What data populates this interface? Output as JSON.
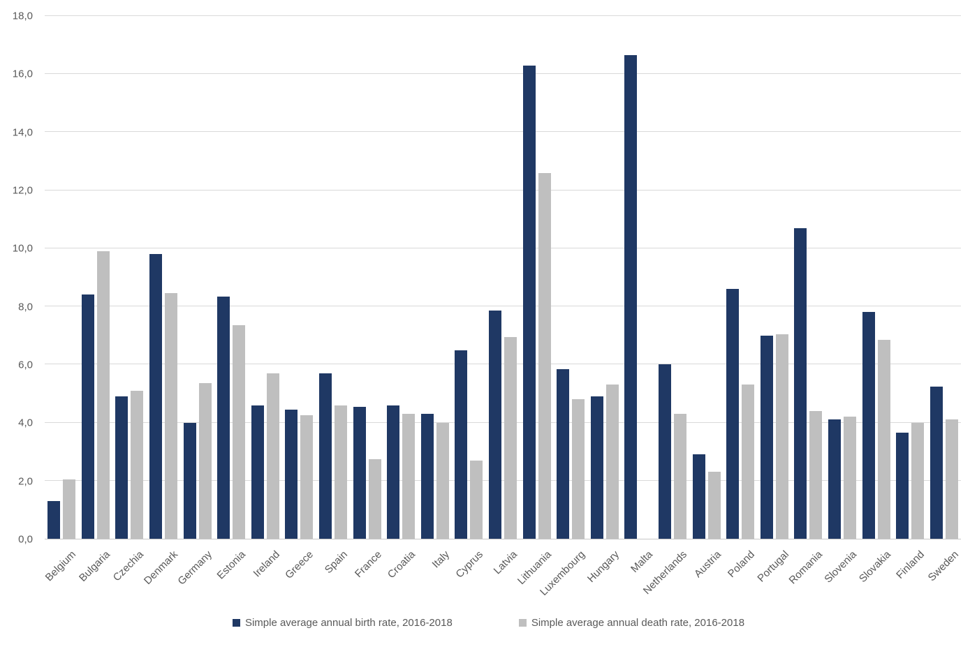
{
  "chart_data": {
    "type": "bar",
    "title": "",
    "categories": [
      "Belgium",
      "Bulgaria",
      "Czechia",
      "Denmark",
      "Germany",
      "Estonia",
      "Ireland",
      "Greece",
      "Spain",
      "France",
      "Croatia",
      "Italy",
      "Cyprus",
      "Latvia",
      "Lithuania",
      "Luxembourg",
      "Hungary",
      "Malta",
      "Netherlands",
      "Austria",
      "Poland",
      "Portugal",
      "Romania",
      "Slovenia",
      "Slovakia",
      "Finland",
      "Sweden"
    ],
    "series": [
      {
        "name": "Simple average annual birth rate, 2016-2018",
        "color": "#1f3864",
        "values": [
          1.3,
          8.4,
          4.9,
          9.8,
          4.0,
          8.35,
          4.6,
          4.45,
          5.7,
          4.55,
          4.6,
          4.3,
          6.5,
          7.85,
          16.3,
          5.85,
          4.9,
          16.65,
          6.0,
          2.9,
          8.6,
          7.0,
          10.7,
          4.1,
          7.8,
          3.65,
          5.25
        ]
      },
      {
        "name": "Simple average annual death rate, 2016-2018",
        "color": "#bfbfbf",
        "values": [
          2.05,
          9.9,
          5.1,
          8.45,
          5.35,
          7.35,
          5.7,
          4.25,
          4.6,
          2.75,
          4.3,
          4.0,
          2.7,
          6.95,
          12.6,
          4.8,
          5.3,
          null,
          4.3,
          2.3,
          5.3,
          7.05,
          4.4,
          4.2,
          6.85,
          4.0,
          4.1
        ]
      }
    ],
    "xlabel": "",
    "ylabel": "",
    "ylim": [
      0,
      18
    ],
    "ytick_step": 2,
    "ytick_labels": [
      "0,0",
      "2,0",
      "4,0",
      "6,0",
      "8,0",
      "10,0",
      "12,0",
      "14,0",
      "16,0",
      "18,0"
    ],
    "grid": true,
    "legend_position": "bottom",
    "x_label_rotation_deg": 45
  },
  "colors": {
    "gridline": "#d9d9d9",
    "axis_line": "#c6c6c6",
    "tick_text": "#595959",
    "background": "#ffffff"
  }
}
